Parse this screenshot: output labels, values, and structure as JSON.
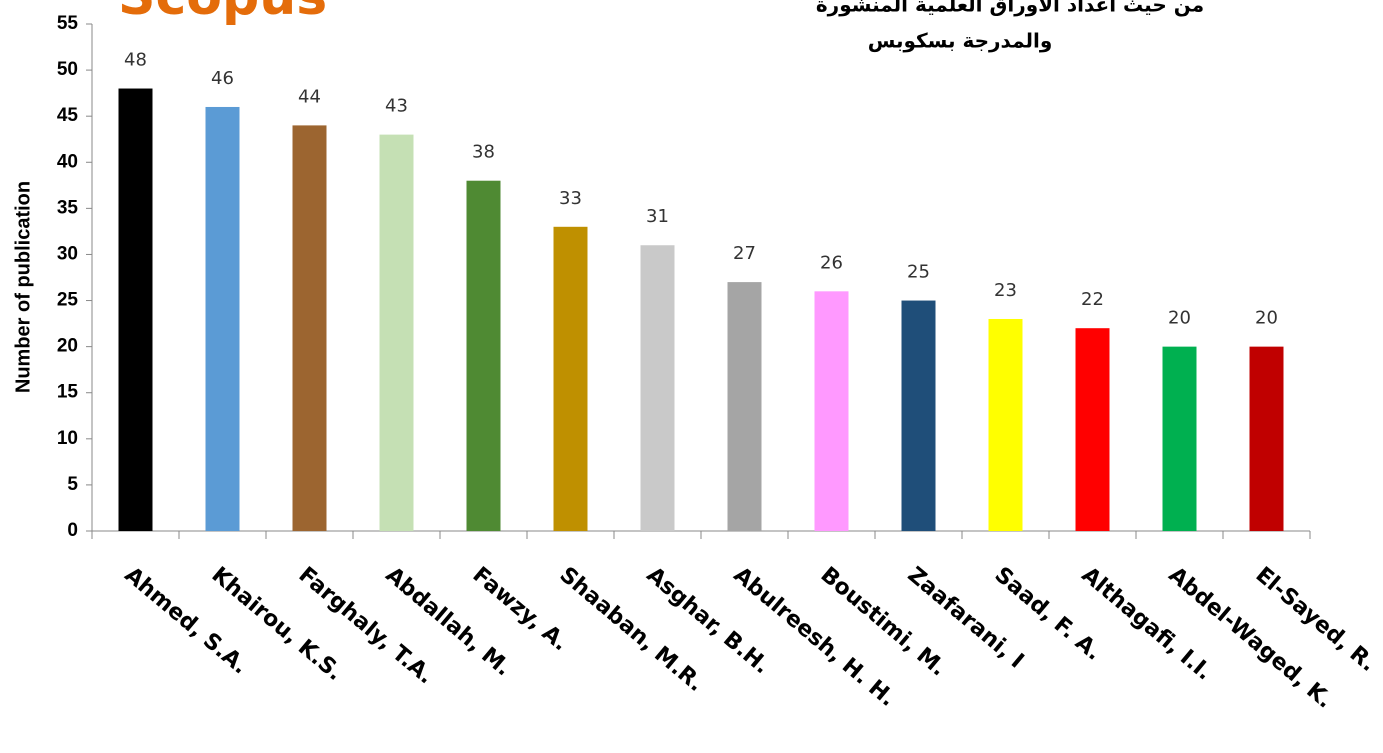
{
  "chart_data": {
    "type": "bar",
    "title": "Scopus",
    "subtitle": [
      "من حيث اعداد الاوراق العلمية المنشورة",
      "والمدرجة بسكوبس"
    ],
    "ylabel": "Number of publication",
    "categories": [
      "Ahmed, S.A.",
      "Khairou, K.S.",
      "Farghaly, T.A.",
      "Abdallah, M.",
      "Fawzy, A.",
      "Shaaban, M.R.",
      "Asghar, B.H.",
      "Abulreesh, H. H.",
      "Boustimi, M.",
      "Zaafarani, I",
      "Saad, F. A.",
      "Althagafi, I.I.",
      "Abdel-Waged, K.",
      "El-Sayed, R."
    ],
    "values": [
      48,
      46,
      44,
      43,
      38,
      33,
      31,
      27,
      26,
      25,
      23,
      22,
      20,
      20
    ],
    "colors": [
      "#000000",
      "#5b9bd5",
      "#9c6530",
      "#c5e0b4",
      "#4f8a33",
      "#bf9000",
      "#c9c9c9",
      "#a5a5a5",
      "#ff99ff",
      "#1f4e79",
      "#ffff00",
      "#ff0000",
      "#00b050",
      "#c00000"
    ],
    "ylim": [
      0,
      55
    ],
    "yticks": [
      0,
      5,
      10,
      15,
      20,
      25,
      30,
      35,
      40,
      45,
      50,
      55
    ],
    "grid": false
  }
}
